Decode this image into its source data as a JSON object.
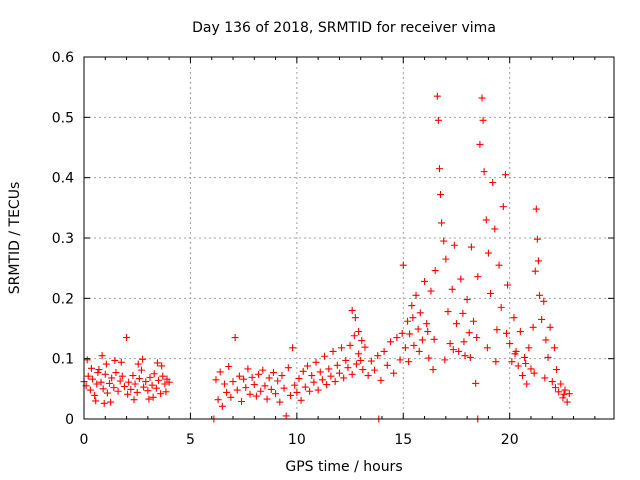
{
  "chart_data": {
    "type": "scatter",
    "title": "Day 136 of 2018, SRMTID for receiver vima",
    "xlabel": "GPS time / hours",
    "ylabel": "SRMTID / TECUs",
    "xlim": [
      0,
      24.9
    ],
    "ylim": [
      0,
      0.6
    ],
    "xticks": [
      0,
      5,
      10,
      15,
      20
    ],
    "xtick_labels": [
      "0",
      "5",
      "10",
      "15",
      "20"
    ],
    "yticks": [
      0,
      0.1,
      0.2,
      0.3,
      0.4,
      0.5,
      0.6
    ],
    "ytick_labels": [
      "0",
      "0.1",
      "0.2",
      "0.3",
      "0.4",
      "0.5",
      "0.6"
    ],
    "grid": true,
    "marker": "plus",
    "color": "#ff0000",
    "series": [
      {
        "name": "SRMTID",
        "points": [
          [
            0.0,
            0.062
          ],
          [
            0.1,
            0.055
          ],
          [
            0.2,
            0.071
          ],
          [
            0.3,
            0.048
          ],
          [
            0.4,
            0.066
          ],
          [
            0.5,
            0.039
          ],
          [
            0.6,
            0.058
          ],
          [
            0.7,
            0.082
          ],
          [
            0.8,
            0.061
          ],
          [
            0.9,
            0.05
          ],
          [
            1.0,
            0.074
          ],
          [
            1.1,
            0.043
          ],
          [
            1.2,
            0.059
          ],
          [
            1.3,
            0.068
          ],
          [
            1.4,
            0.052
          ],
          [
            1.5,
            0.077
          ],
          [
            1.6,
            0.046
          ],
          [
            1.7,
            0.063
          ],
          [
            1.8,
            0.071
          ],
          [
            1.9,
            0.054
          ],
          [
            2.0,
            0.135
          ],
          [
            2.1,
            0.061
          ],
          [
            2.2,
            0.049
          ],
          [
            2.3,
            0.072
          ],
          [
            2.4,
            0.058
          ],
          [
            2.5,
            0.044
          ],
          [
            2.6,
            0.067
          ],
          [
            2.7,
            0.081
          ],
          [
            2.8,
            0.053
          ],
          [
            2.9,
            0.062
          ],
          [
            3.0,
            0.047
          ],
          [
            3.1,
            0.069
          ],
          [
            3.2,
            0.056
          ],
          [
            3.3,
            0.075
          ],
          [
            3.4,
            0.051
          ],
          [
            3.5,
            0.064
          ],
          [
            3.6,
            0.042
          ],
          [
            3.7,
            0.071
          ],
          [
            3.8,
            0.058
          ],
          [
            3.9,
            0.066
          ],
          [
            4.0,
            0.061
          ],
          [
            0.15,
            0.098
          ],
          [
            0.55,
            0.03
          ],
          [
            0.85,
            0.105
          ],
          [
            1.25,
            0.028
          ],
          [
            1.75,
            0.094
          ],
          [
            2.35,
            0.032
          ],
          [
            2.75,
            0.099
          ],
          [
            3.25,
            0.036
          ],
          [
            3.65,
            0.088
          ],
          [
            0.35,
            0.084
          ],
          [
            0.95,
            0.026
          ],
          [
            1.45,
            0.097
          ],
          [
            2.05,
            0.041
          ],
          [
            2.55,
            0.091
          ],
          [
            3.05,
            0.033
          ],
          [
            3.45,
            0.093
          ],
          [
            3.85,
            0.045
          ],
          [
            0.65,
            0.077
          ],
          [
            1.05,
            0.091
          ],
          [
            6.1,
            0.0
          ],
          [
            13.85,
            0.0
          ],
          [
            18.5,
            0.0
          ],
          [
            6.2,
            0.065
          ],
          [
            6.3,
            0.032
          ],
          [
            6.4,
            0.078
          ],
          [
            6.5,
            0.021
          ],
          [
            6.6,
            0.058
          ],
          [
            6.7,
            0.044
          ],
          [
            6.8,
            0.087
          ],
          [
            6.9,
            0.036
          ],
          [
            7.0,
            0.062
          ],
          [
            7.1,
            0.135
          ],
          [
            7.2,
            0.048
          ],
          [
            7.3,
            0.071
          ],
          [
            7.4,
            0.029
          ],
          [
            7.5,
            0.066
          ],
          [
            7.6,
            0.052
          ],
          [
            7.7,
            0.083
          ],
          [
            7.8,
            0.041
          ],
          [
            7.9,
            0.069
          ],
          [
            8.0,
            0.057
          ],
          [
            8.1,
            0.038
          ],
          [
            8.2,
            0.074
          ],
          [
            8.3,
            0.046
          ],
          [
            8.4,
            0.081
          ],
          [
            8.5,
            0.055
          ],
          [
            8.6,
            0.033
          ],
          [
            8.7,
            0.068
          ],
          [
            8.8,
            0.049
          ],
          [
            8.9,
            0.077
          ],
          [
            9.0,
            0.042
          ],
          [
            9.1,
            0.063
          ],
          [
            9.2,
            0.028
          ],
          [
            9.3,
            0.072
          ],
          [
            9.4,
            0.051
          ],
          [
            9.5,
            0.005
          ],
          [
            9.6,
            0.085
          ],
          [
            9.7,
            0.039
          ],
          [
            9.8,
            0.118
          ],
          [
            9.9,
            0.056
          ],
          [
            10.0,
            0.044
          ],
          [
            10.1,
            0.067
          ],
          [
            10.2,
            0.031
          ],
          [
            10.3,
            0.079
          ],
          [
            10.4,
            0.053
          ],
          [
            10.5,
            0.088
          ],
          [
            10.6,
            0.046
          ],
          [
            10.7,
            0.072
          ],
          [
            10.8,
            0.061
          ],
          [
            10.9,
            0.094
          ],
          [
            11.0,
            0.048
          ],
          [
            11.1,
            0.078
          ],
          [
            11.2,
            0.065
          ],
          [
            11.3,
            0.104
          ],
          [
            11.4,
            0.057
          ],
          [
            11.5,
            0.083
          ],
          [
            11.6,
            0.071
          ],
          [
            11.7,
            0.112
          ],
          [
            11.8,
            0.062
          ],
          [
            11.9,
            0.089
          ],
          [
            12.0,
            0.076
          ],
          [
            12.1,
            0.118
          ],
          [
            12.2,
            0.068
          ],
          [
            12.3,
            0.097
          ],
          [
            12.4,
            0.085
          ],
          [
            12.5,
            0.122
          ],
          [
            12.6,
            0.074
          ],
          [
            12.7,
            0.138
          ],
          [
            12.8,
            0.091
          ],
          [
            12.9,
            0.108
          ],
          [
            13.0,
            0.097
          ],
          [
            13.1,
            0.082
          ],
          [
            12.6,
            0.18
          ],
          [
            12.75,
            0.168
          ],
          [
            12.9,
            0.145
          ],
          [
            13.05,
            0.13
          ],
          [
            13.2,
            0.119
          ],
          [
            13.35,
            0.072
          ],
          [
            13.5,
            0.096
          ],
          [
            13.65,
            0.081
          ],
          [
            13.8,
            0.105
          ],
          [
            13.95,
            0.064
          ],
          [
            14.1,
            0.112
          ],
          [
            14.25,
            0.089
          ],
          [
            14.4,
            0.128
          ],
          [
            14.55,
            0.076
          ],
          [
            14.7,
            0.135
          ],
          [
            14.85,
            0.098
          ],
          [
            15.0,
            0.255
          ],
          [
            15.1,
            0.118
          ],
          [
            15.2,
            0.162
          ],
          [
            15.3,
            0.141
          ],
          [
            15.4,
            0.188
          ],
          [
            15.5,
            0.122
          ],
          [
            15.6,
            0.205
          ],
          [
            15.7,
            0.149
          ],
          [
            15.8,
            0.176
          ],
          [
            15.9,
            0.131
          ],
          [
            16.0,
            0.228
          ],
          [
            16.1,
            0.158
          ],
          [
            16.2,
            0.101
          ],
          [
            16.3,
            0.212
          ],
          [
            16.4,
            0.082
          ],
          [
            16.5,
            0.246
          ],
          [
            16.6,
            0.535
          ],
          [
            16.65,
            0.495
          ],
          [
            16.7,
            0.415
          ],
          [
            16.75,
            0.372
          ],
          [
            16.8,
            0.325
          ],
          [
            16.9,
            0.295
          ],
          [
            17.0,
            0.265
          ],
          [
            17.1,
            0.178
          ],
          [
            17.2,
            0.125
          ],
          [
            17.3,
            0.215
          ],
          [
            17.4,
            0.288
          ],
          [
            17.5,
            0.158
          ],
          [
            17.6,
            0.112
          ],
          [
            17.7,
            0.232
          ],
          [
            17.8,
            0.175
          ],
          [
            17.9,
            0.105
          ],
          [
            18.0,
            0.198
          ],
          [
            18.1,
            0.143
          ],
          [
            18.2,
            0.285
          ],
          [
            18.3,
            0.162
          ],
          [
            18.4,
            0.059
          ],
          [
            18.5,
            0.236
          ],
          [
            18.6,
            0.455
          ],
          [
            18.7,
            0.532
          ],
          [
            18.75,
            0.495
          ],
          [
            18.8,
            0.41
          ],
          [
            18.9,
            0.33
          ],
          [
            19.0,
            0.275
          ],
          [
            19.1,
            0.208
          ],
          [
            19.2,
            0.392
          ],
          [
            19.3,
            0.315
          ],
          [
            19.4,
            0.148
          ],
          [
            19.5,
            0.255
          ],
          [
            19.6,
            0.185
          ],
          [
            19.7,
            0.352
          ],
          [
            19.8,
            0.405
          ],
          [
            19.9,
            0.222
          ],
          [
            20.0,
            0.125
          ],
          [
            20.1,
            0.095
          ],
          [
            20.2,
            0.168
          ],
          [
            20.3,
            0.112
          ],
          [
            20.4,
            0.088
          ],
          [
            20.5,
            0.145
          ],
          [
            20.6,
            0.072
          ],
          [
            20.7,
            0.102
          ],
          [
            20.8,
            0.058
          ],
          [
            20.9,
            0.118
          ],
          [
            21.0,
            0.083
          ],
          [
            21.1,
            0.152
          ],
          [
            21.2,
            0.245
          ],
          [
            21.25,
            0.348
          ],
          [
            21.3,
            0.298
          ],
          [
            21.35,
            0.262
          ],
          [
            21.4,
            0.205
          ],
          [
            21.5,
            0.165
          ],
          [
            21.6,
            0.195
          ],
          [
            21.7,
            0.131
          ],
          [
            21.8,
            0.102
          ],
          [
            21.9,
            0.152
          ],
          [
            22.0,
            0.062
          ],
          [
            22.1,
            0.118
          ],
          [
            22.2,
            0.082
          ],
          [
            22.3,
            0.045
          ],
          [
            22.4,
            0.058
          ],
          [
            22.5,
            0.035
          ],
          [
            22.6,
            0.048
          ],
          [
            22.7,
            0.028
          ],
          [
            22.8,
            0.042
          ],
          [
            15.25,
            0.095
          ],
          [
            15.75,
            0.112
          ],
          [
            16.15,
            0.145
          ],
          [
            16.45,
            0.132
          ],
          [
            16.95,
            0.098
          ],
          [
            17.35,
            0.115
          ],
          [
            17.85,
            0.128
          ],
          [
            18.15,
            0.102
          ],
          [
            18.45,
            0.135
          ],
          [
            18.95,
            0.118
          ],
          [
            19.35,
            0.095
          ],
          [
            19.85,
            0.142
          ],
          [
            20.25,
            0.108
          ],
          [
            20.75,
            0.092
          ],
          [
            21.15,
            0.076
          ],
          [
            21.65,
            0.068
          ],
          [
            22.15,
            0.052
          ],
          [
            22.55,
            0.041
          ],
          [
            14.95,
            0.142
          ],
          [
            15.45,
            0.168
          ]
        ]
      }
    ]
  }
}
